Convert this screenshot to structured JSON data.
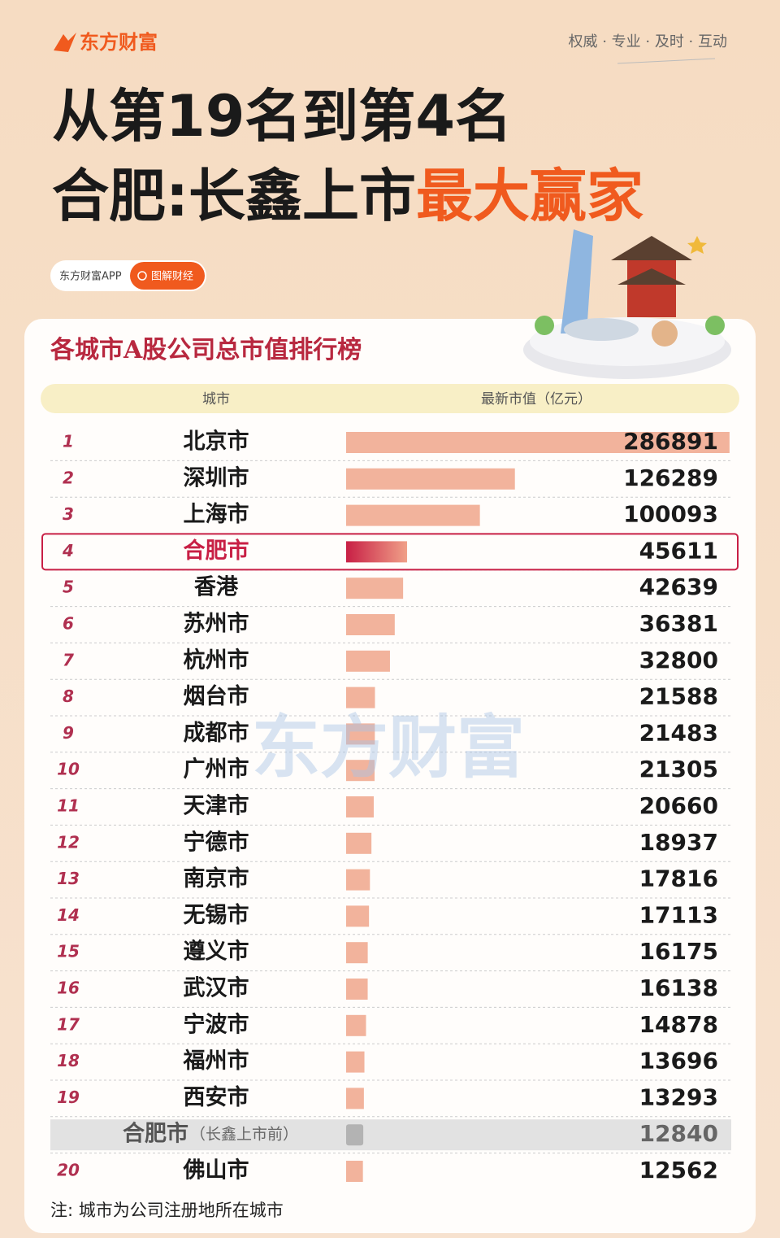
{
  "brand": "东方财富",
  "slogan": "权威 · 专业 · 及时 · 互动",
  "headline": {
    "line1": "从第19名到第4名",
    "line2_main": "合肥:长鑫上市",
    "line2_accent": "最大赢家"
  },
  "tag": {
    "app": "东方财富APP",
    "topic": "图解财经"
  },
  "watermark": "东方财富",
  "note": "注: 城市为公司注册地所在城市",
  "chart_data": {
    "type": "bar",
    "title": "各城市A股公司总市值排行榜",
    "header": [
      "城市",
      "最新市值（亿元）"
    ],
    "ranks": [
      1,
      2,
      3,
      4,
      5,
      6,
      7,
      8,
      9,
      10,
      11,
      12,
      13,
      14,
      15,
      16,
      17,
      18,
      19,
      null,
      20
    ],
    "categories": [
      "北京市",
      "深圳市",
      "上海市",
      "合肥市",
      "香港",
      "苏州市",
      "杭州市",
      "烟台市",
      "成都市",
      "广州市",
      "天津市",
      "宁德市",
      "南京市",
      "无锡市",
      "遵义市",
      "武汉市",
      "宁波市",
      "福州市",
      "西安市",
      "合肥市",
      "佛山市"
    ],
    "category_notes": [
      null,
      null,
      null,
      null,
      null,
      null,
      null,
      null,
      null,
      null,
      null,
      null,
      null,
      null,
      null,
      null,
      null,
      null,
      null,
      "（长鑫上市前）",
      null
    ],
    "values": [
      286891,
      126289,
      100093,
      45611,
      42639,
      36381,
      32800,
      21588,
      21483,
      21305,
      20660,
      18937,
      17816,
      17113,
      16175,
      16138,
      14878,
      13696,
      13293,
      12840,
      12562
    ],
    "row_styles": [
      "normal",
      "normal",
      "normal",
      "highlight",
      "normal",
      "normal",
      "normal",
      "normal",
      "normal",
      "normal",
      "normal",
      "normal",
      "normal",
      "normal",
      "normal",
      "normal",
      "normal",
      "normal",
      "normal",
      "muted",
      "normal"
    ],
    "color": "#f2b39c",
    "highlight_color": "#c81f45",
    "muted_color": "#b3b3b3",
    "xlim": [
      0,
      290000
    ]
  }
}
